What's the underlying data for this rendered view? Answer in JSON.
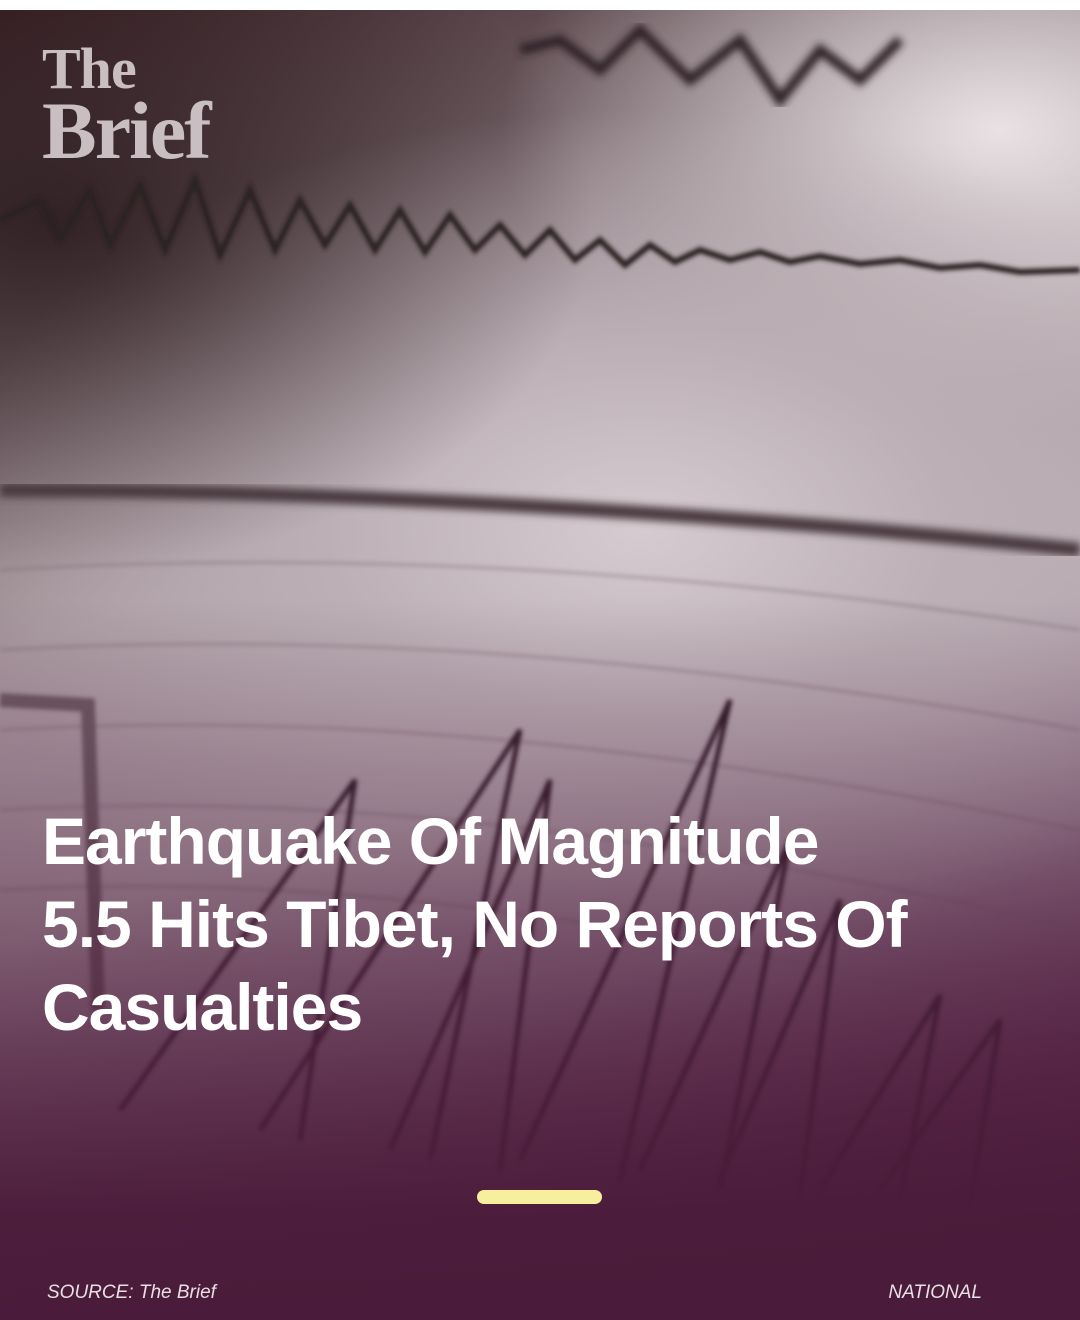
{
  "brand": {
    "logo_line1": "The",
    "logo_line2": "Brief"
  },
  "story": {
    "headline_line1": "Earthquake Of Magnitude",
    "headline_line2": "5.5 Hits Tibet, No Reports Of",
    "headline_line3": "Casualties",
    "image_icon": "seismograph-image"
  },
  "footer": {
    "source": "SOURCE: The Brief",
    "category": "NATIONAL"
  },
  "colors": {
    "background": "#4a1b38",
    "progress_bar": "#f7ef9c",
    "headline_text": "#ffffff",
    "logo_text": "#c9bfc3"
  }
}
